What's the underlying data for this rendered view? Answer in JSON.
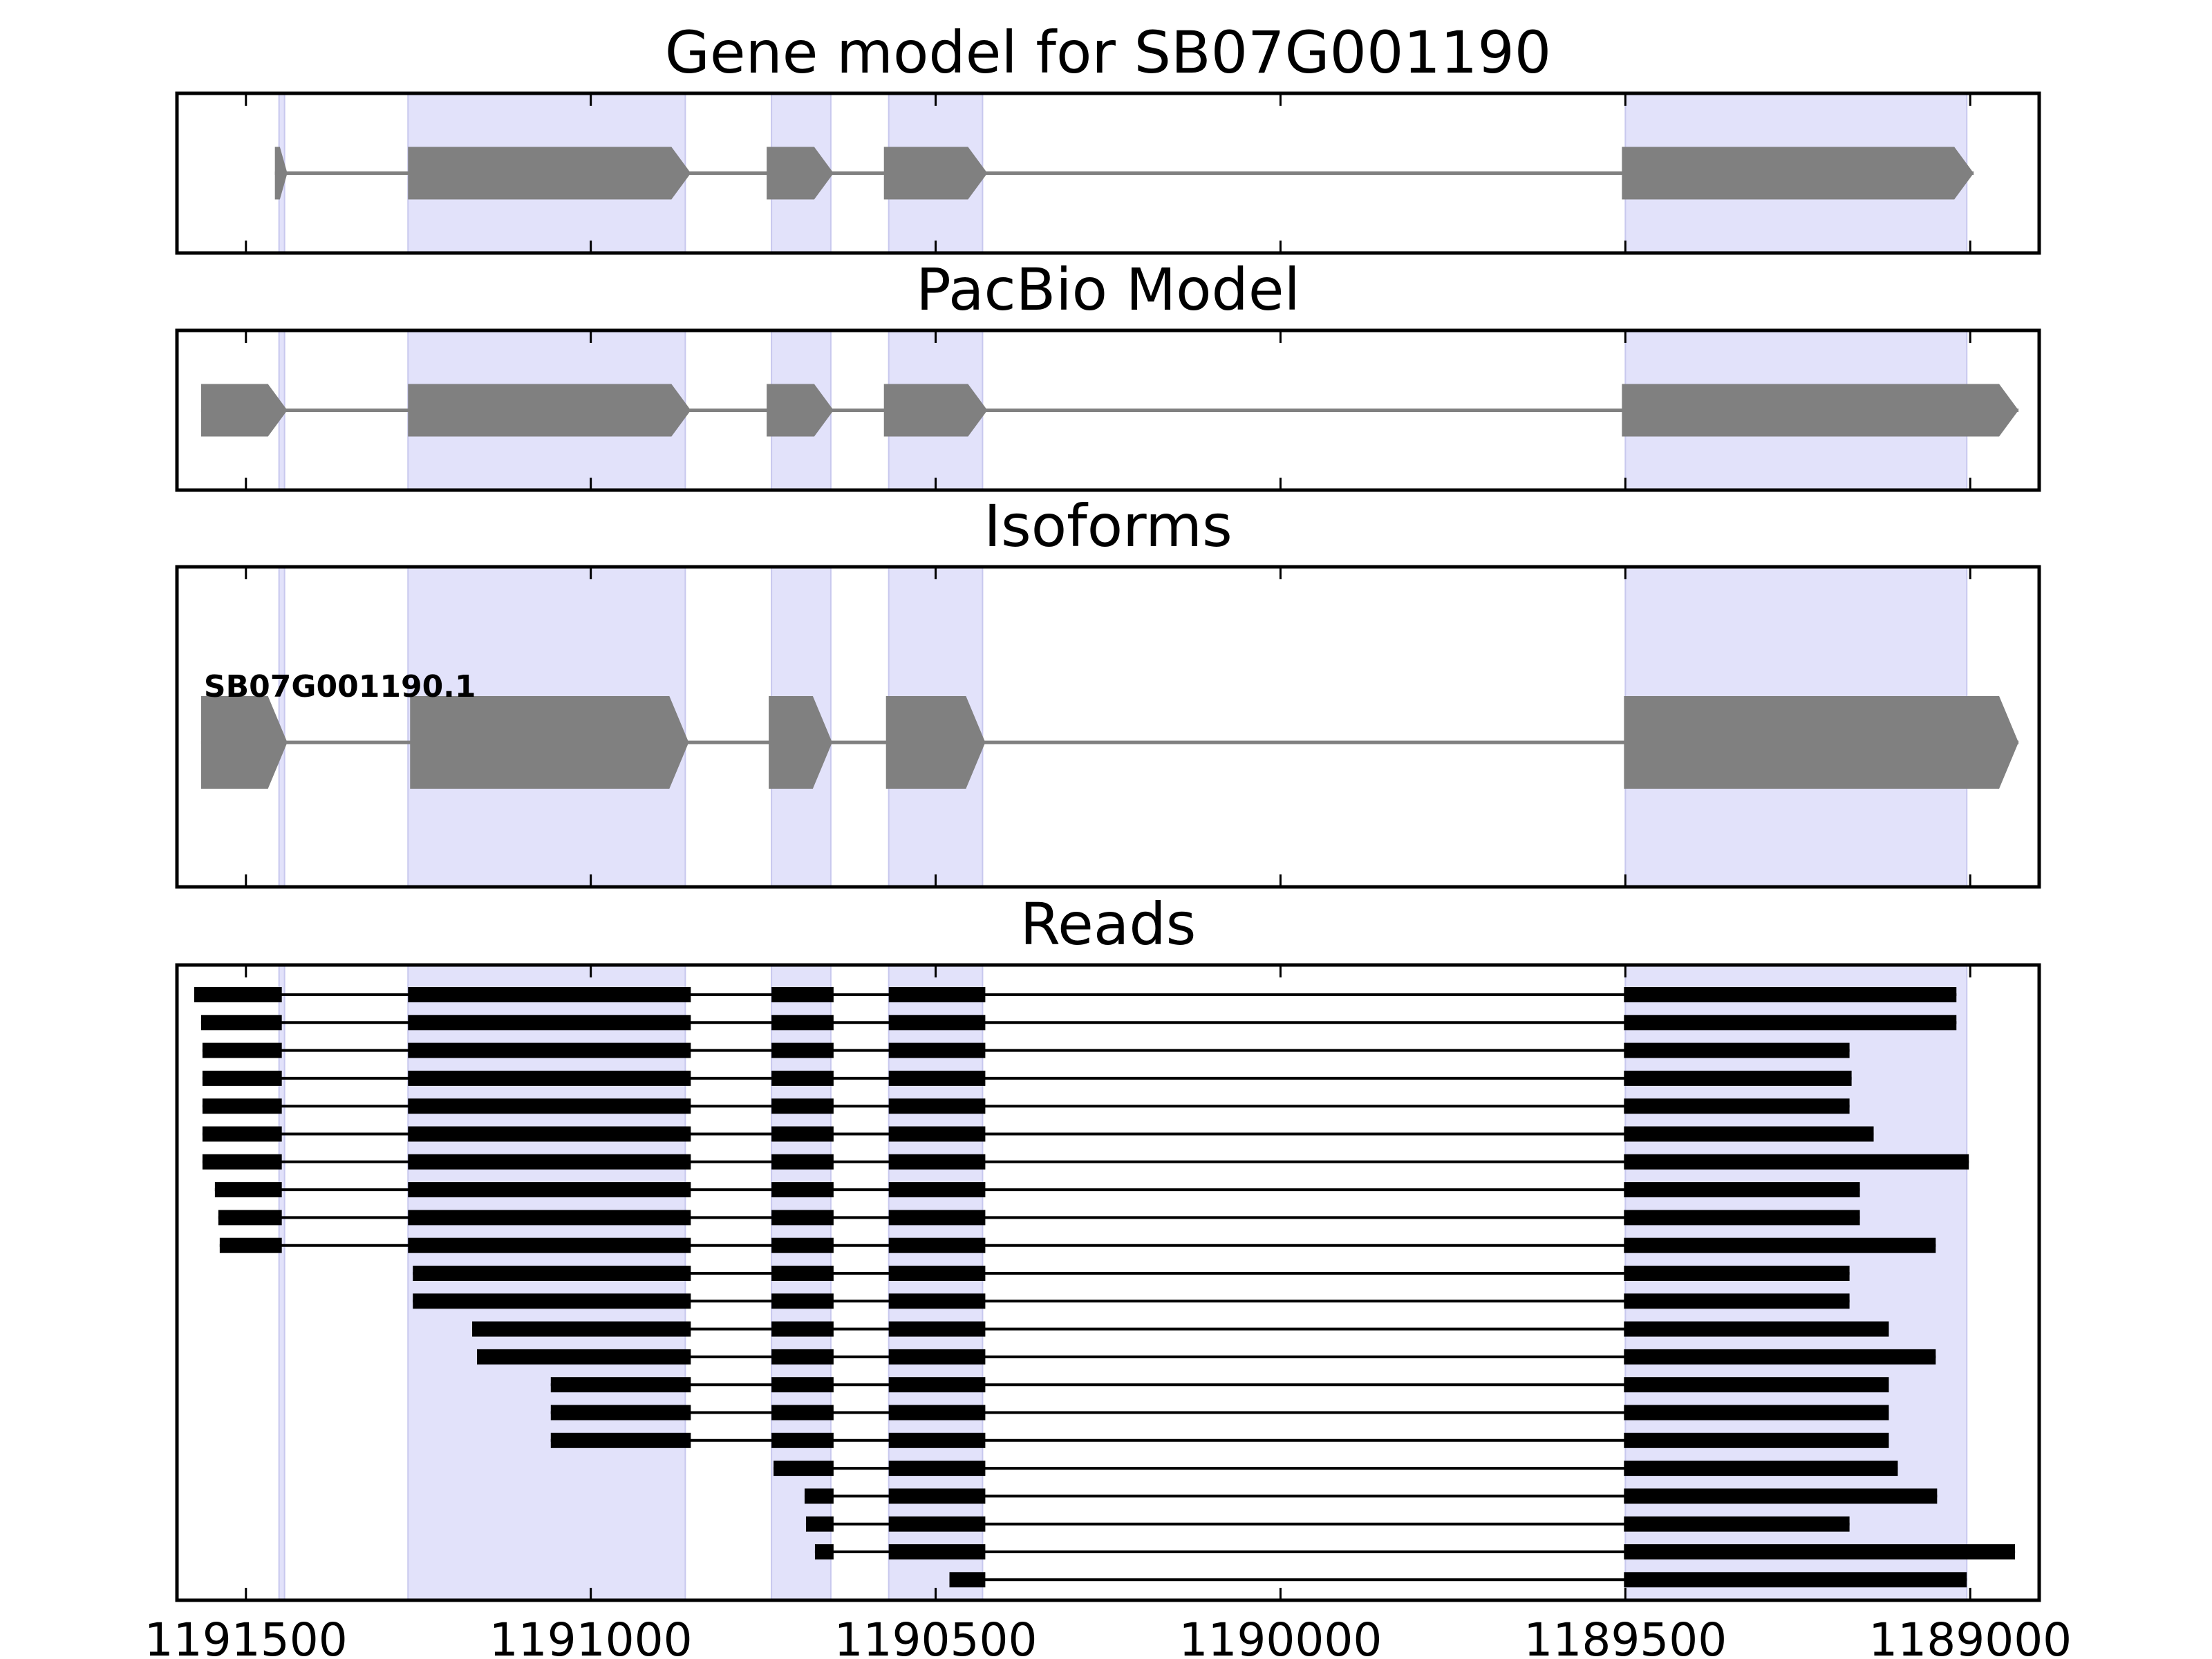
{
  "chart_data": {
    "type": "gene_structure",
    "colors": {
      "exon_highlight": "#e2e2fa",
      "exon_highlight_edge": "#c8c8ee",
      "model_feature": "#808080",
      "read_feature": "#000000",
      "intron_line": "#808080",
      "axes": "#000000"
    },
    "xlim": [
      1191600,
      1188900
    ],
    "x_ticks": [
      1191500,
      1191000,
      1190500,
      1190000,
      1189500,
      1189000
    ],
    "x_tick_labels": [
      "1191500",
      "1191000",
      "1190500",
      "1190000",
      "1189500",
      "1189000"
    ],
    "highlight_regions": [
      [
        1191452,
        1191444
      ],
      [
        1191265,
        1190863
      ],
      [
        1190738,
        1190652
      ],
      [
        1190568,
        1190432
      ],
      [
        1189500,
        1189005
      ]
    ],
    "panels": [
      {
        "title": "Gene model for SB07G001190",
        "strand": "-",
        "exons": [
          [
            1191458,
            1191440
          ],
          [
            1191265,
            1190855
          ],
          [
            1190745,
            1190648
          ],
          [
            1190575,
            1190425
          ],
          [
            1189505,
            1188995
          ]
        ]
      },
      {
        "title": "PacBio Model",
        "strand": "-",
        "exons": [
          [
            1191565,
            1191440
          ],
          [
            1191265,
            1190855
          ],
          [
            1190745,
            1190648
          ],
          [
            1190575,
            1190425
          ],
          [
            1189505,
            1188930
          ]
        ]
      },
      {
        "title": "Isoforms",
        "strand": "-",
        "isoforms": [
          {
            "name": "SB07G001190.1",
            "exons": [
              [
                1191565,
                1191440
              ],
              [
                1191262,
                1190858
              ],
              [
                1190742,
                1190650
              ],
              [
                1190572,
                1190428
              ],
              [
                1189502,
                1188930
              ]
            ]
          }
        ]
      },
      {
        "title": "Reads",
        "reads": [
          {
            "exons": [
              [
                1191575,
                1191448
              ],
              [
                1191265,
                1190855
              ],
              [
                1190738,
                1190648
              ],
              [
                1190568,
                1190428
              ],
              [
                1189502,
                1189020
              ]
            ]
          },
          {
            "exons": [
              [
                1191565,
                1191448
              ],
              [
                1191265,
                1190855
              ],
              [
                1190738,
                1190648
              ],
              [
                1190568,
                1190428
              ],
              [
                1189502,
                1189020
              ]
            ]
          },
          {
            "exons": [
              [
                1191563,
                1191448
              ],
              [
                1191265,
                1190855
              ],
              [
                1190738,
                1190648
              ],
              [
                1190568,
                1190428
              ],
              [
                1189502,
                1189175
              ]
            ]
          },
          {
            "exons": [
              [
                1191563,
                1191448
              ],
              [
                1191265,
                1190855
              ],
              [
                1190738,
                1190648
              ],
              [
                1190568,
                1190428
              ],
              [
                1189502,
                1189172
              ]
            ]
          },
          {
            "exons": [
              [
                1191563,
                1191448
              ],
              [
                1191265,
                1190855
              ],
              [
                1190738,
                1190648
              ],
              [
                1190568,
                1190428
              ],
              [
                1189502,
                1189175
              ]
            ]
          },
          {
            "exons": [
              [
                1191563,
                1191448
              ],
              [
                1191265,
                1190855
              ],
              [
                1190738,
                1190648
              ],
              [
                1190568,
                1190428
              ],
              [
                1189502,
                1189140
              ]
            ]
          },
          {
            "exons": [
              [
                1191563,
                1191448
              ],
              [
                1191265,
                1190855
              ],
              [
                1190738,
                1190648
              ],
              [
                1190568,
                1190428
              ],
              [
                1189502,
                1189002
              ]
            ]
          },
          {
            "exons": [
              [
                1191545,
                1191448
              ],
              [
                1191265,
                1190855
              ],
              [
                1190738,
                1190648
              ],
              [
                1190568,
                1190428
              ],
              [
                1189502,
                1189160
              ]
            ]
          },
          {
            "exons": [
              [
                1191540,
                1191448
              ],
              [
                1191265,
                1190855
              ],
              [
                1190738,
                1190648
              ],
              [
                1190568,
                1190428
              ],
              [
                1189502,
                1189160
              ]
            ]
          },
          {
            "exons": [
              [
                1191538,
                1191448
              ],
              [
                1191265,
                1190855
              ],
              [
                1190738,
                1190648
              ],
              [
                1190568,
                1190428
              ],
              [
                1189502,
                1189050
              ]
            ]
          },
          {
            "exons": [
              [
                1191258,
                1190855
              ],
              [
                1190738,
                1190648
              ],
              [
                1190568,
                1190428
              ],
              [
                1189502,
                1189175
              ]
            ]
          },
          {
            "exons": [
              [
                1191258,
                1190855
              ],
              [
                1190738,
                1190648
              ],
              [
                1190568,
                1190428
              ],
              [
                1189502,
                1189175
              ]
            ]
          },
          {
            "exons": [
              [
                1191172,
                1190855
              ],
              [
                1190738,
                1190648
              ],
              [
                1190568,
                1190428
              ],
              [
                1189502,
                1189118
              ]
            ]
          },
          {
            "exons": [
              [
                1191165,
                1190855
              ],
              [
                1190738,
                1190648
              ],
              [
                1190568,
                1190428
              ],
              [
                1189502,
                1189050
              ]
            ]
          },
          {
            "exons": [
              [
                1191058,
                1190855
              ],
              [
                1190738,
                1190648
              ],
              [
                1190568,
                1190428
              ],
              [
                1189502,
                1189118
              ]
            ]
          },
          {
            "exons": [
              [
                1191058,
                1190855
              ],
              [
                1190738,
                1190648
              ],
              [
                1190568,
                1190428
              ],
              [
                1189502,
                1189118
              ]
            ]
          },
          {
            "exons": [
              [
                1191058,
                1190855
              ],
              [
                1190738,
                1190648
              ],
              [
                1190568,
                1190428
              ],
              [
                1189502,
                1189118
              ]
            ]
          },
          {
            "exons": [
              [
                1190735,
                1190648
              ],
              [
                1190568,
                1190428
              ],
              [
                1189502,
                1189105
              ]
            ]
          },
          {
            "exons": [
              [
                1190690,
                1190648
              ],
              [
                1190568,
                1190428
              ],
              [
                1189502,
                1189048
              ]
            ]
          },
          {
            "exons": [
              [
                1190688,
                1190648
              ],
              [
                1190568,
                1190428
              ],
              [
                1189502,
                1189175
              ]
            ]
          },
          {
            "exons": [
              [
                1190675,
                1190648
              ],
              [
                1190568,
                1190428
              ],
              [
                1189502,
                1188935
              ]
            ]
          },
          {
            "exons": [
              [
                1190480,
                1190428
              ],
              [
                1189502,
                1189005
              ]
            ]
          }
        ]
      }
    ]
  }
}
